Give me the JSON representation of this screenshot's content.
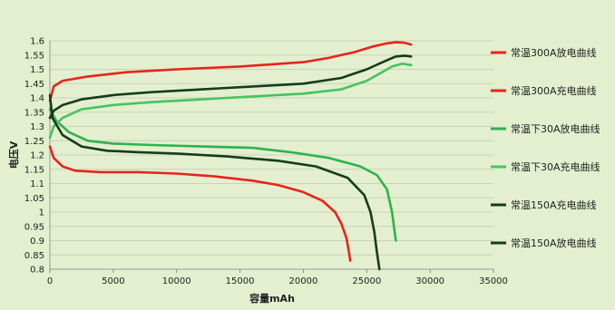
{
  "chart_data": {
    "type": "line",
    "title": "",
    "xlabel": "容量mAh",
    "ylabel": "电压V",
    "xlim": [
      0,
      35000
    ],
    "ylim": [
      0.8,
      1.6
    ],
    "xticks": [
      "0",
      "5000",
      "10000",
      "15000",
      "20000",
      "25000",
      "30000",
      "35000"
    ],
    "yticks": [
      "0.8",
      "0.85",
      "0.9",
      "0.95",
      "1",
      "1.05",
      "1.1",
      "1.15",
      "1.2",
      "1.25",
      "1.3",
      "1.35",
      "1.4",
      "1.45",
      "1.5",
      "1.55",
      "1.6"
    ],
    "grid": "horizontal",
    "legend": "right",
    "series": [
      {
        "name": "常温300A放电曲线",
        "color": "#e8241c",
        "x": [
          0,
          300,
          1000,
          2000,
          4000,
          7000,
          10000,
          13000,
          16000,
          18000,
          20000,
          21500,
          22500,
          23000,
          23400,
          23600,
          23700
        ],
        "y": [
          1.23,
          1.19,
          1.16,
          1.145,
          1.14,
          1.14,
          1.135,
          1.125,
          1.11,
          1.095,
          1.07,
          1.04,
          1.0,
          0.96,
          0.91,
          0.86,
          0.83
        ]
      },
      {
        "name": "常温300A充电曲线",
        "color": "#e8241c",
        "x": [
          0,
          300,
          1000,
          3000,
          6000,
          10000,
          15000,
          20000,
          22000,
          24000,
          25500,
          26500,
          27300,
          28000,
          28500
        ],
        "y": [
          1.39,
          1.44,
          1.46,
          1.475,
          1.49,
          1.5,
          1.51,
          1.525,
          1.54,
          1.56,
          1.58,
          1.59,
          1.595,
          1.593,
          1.587
        ]
      },
      {
        "name": "常温下30A放电曲线",
        "color": "#2fb24c",
        "x": [
          0,
          500,
          1500,
          3000,
          5000,
          8000,
          12000,
          16000,
          19000,
          22000,
          24500,
          25800,
          26600,
          27000,
          27300
        ],
        "y": [
          1.36,
          1.32,
          1.28,
          1.25,
          1.24,
          1.235,
          1.23,
          1.225,
          1.21,
          1.19,
          1.16,
          1.13,
          1.08,
          1.0,
          0.9
        ]
      },
      {
        "name": "常温下30A充电曲线",
        "color": "#45c45e",
        "x": [
          0,
          300,
          1000,
          2500,
          5000,
          8000,
          12000,
          16000,
          20000,
          23000,
          25000,
          26200,
          27000,
          27800,
          28500
        ],
        "y": [
          1.26,
          1.3,
          1.33,
          1.36,
          1.375,
          1.385,
          1.395,
          1.405,
          1.415,
          1.43,
          1.46,
          1.49,
          1.51,
          1.52,
          1.515
        ]
      },
      {
        "name": "常温150A充电曲线",
        "color": "#133d1a",
        "x": [
          0,
          300,
          1000,
          2500,
          5000,
          8000,
          12000,
          16000,
          20000,
          23000,
          25000,
          26500,
          27300,
          28000,
          28500
        ],
        "y": [
          1.33,
          1.355,
          1.375,
          1.395,
          1.41,
          1.42,
          1.43,
          1.44,
          1.45,
          1.47,
          1.5,
          1.53,
          1.545,
          1.548,
          1.545
        ]
      },
      {
        "name": "常温150A放电曲线",
        "color": "#133d1a",
        "x": [
          0,
          200,
          1000,
          2500,
          4500,
          7000,
          10000,
          14000,
          18000,
          21000,
          23500,
          24800,
          25300,
          25600,
          25800,
          26000
        ],
        "y": [
          1.41,
          1.33,
          1.27,
          1.23,
          1.215,
          1.21,
          1.205,
          1.195,
          1.18,
          1.16,
          1.12,
          1.06,
          1.0,
          0.93,
          0.86,
          0.8
        ]
      }
    ]
  }
}
